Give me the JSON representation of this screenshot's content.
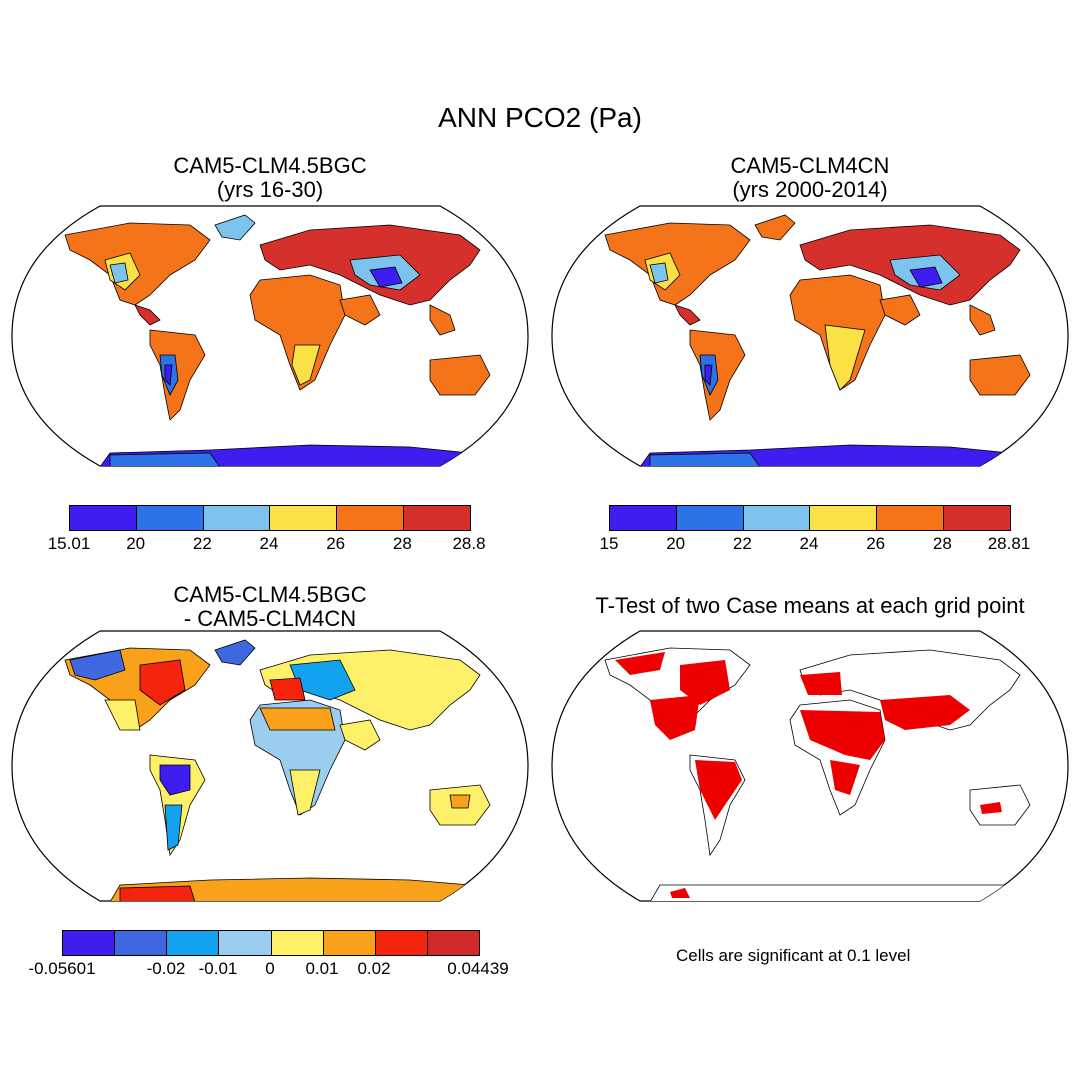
{
  "main_title": "ANN PCO2 (Pa)",
  "panels": [
    {
      "title_line1": "CAM5-CLM4.5BGC",
      "title_line2": "(yrs 16-30)"
    },
    {
      "title_line1": "CAM5-CLM4CN",
      "title_line2": "(yrs 2000-2014)"
    },
    {
      "title_line1": "CAM5-CLM4.5BGC",
      "title_line2": "- CAM5-CLM4CN"
    },
    {
      "title_line1": "T-Test of two Case means at each grid point"
    }
  ],
  "colorbars": {
    "case1": {
      "colors": [
        "#3d1df0",
        "#2b73e6",
        "#7cc4ee",
        "#fbe146",
        "#f57419",
        "#d6302c"
      ],
      "labels": [
        "15.01",
        "20",
        "22",
        "24",
        "26",
        "28",
        "28.8"
      ]
    },
    "case2": {
      "colors": [
        "#3d1df0",
        "#2b73e6",
        "#7cc4ee",
        "#fbe146",
        "#f57419",
        "#d6302c"
      ],
      "labels": [
        "15",
        "20",
        "22",
        "24",
        "26",
        "28",
        "28.81"
      ]
    },
    "diff": {
      "colors": [
        "#3d1df0",
        "#3f68e0",
        "#12a2ef",
        "#9bcdee",
        "#fff06a",
        "#f9a11b",
        "#f5240e",
        "#d22a2a"
      ],
      "labels": [
        "-0.05601",
        "-0.02",
        "-0.01",
        "0",
        "0.01",
        "0.02",
        "0.04439"
      ]
    }
  },
  "significance_note": "Cells are significant at 0.1 level"
}
